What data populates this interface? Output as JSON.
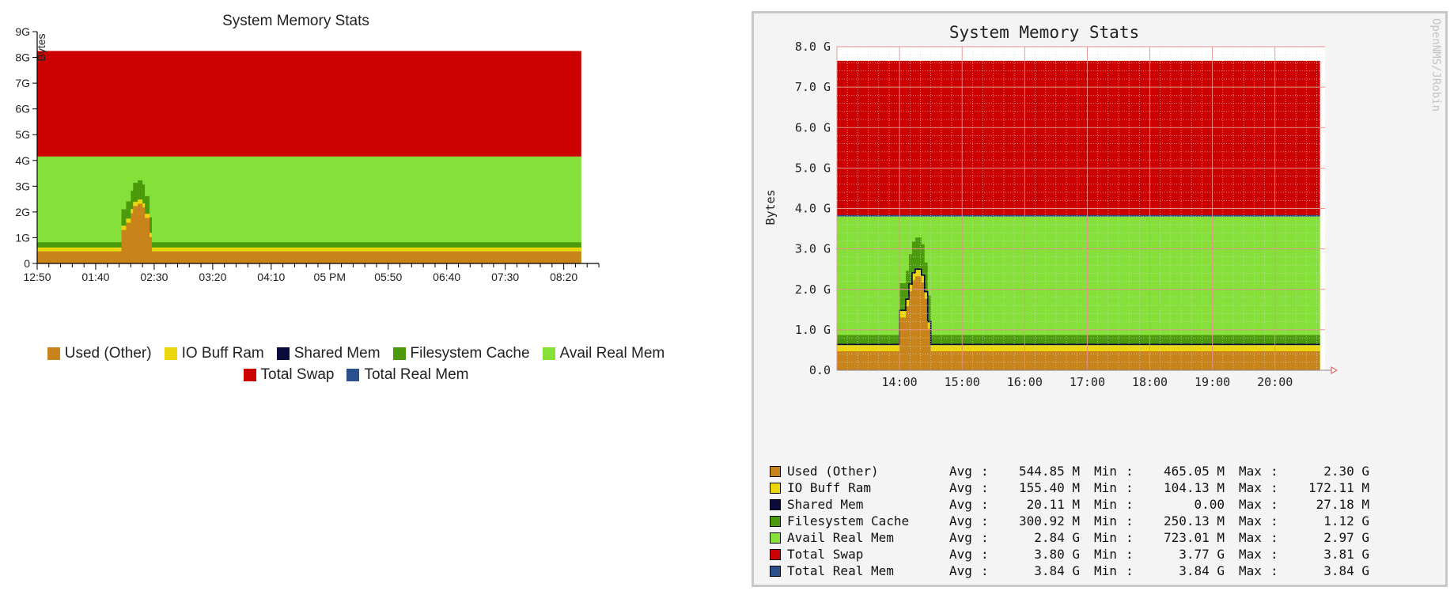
{
  "chart_data": [
    {
      "type": "area",
      "title": "System Memory Stats",
      "ylabel": "Bytes",
      "ylim": [
        0,
        9
      ],
      "yticks": [
        "0",
        "1G",
        "2G",
        "3G",
        "4G",
        "5G",
        "6G",
        "7G",
        "8G",
        "9G"
      ],
      "xlim": [
        0,
        480
      ],
      "xticks": [
        {
          "x": 0,
          "label": "12:50"
        },
        {
          "x": 50,
          "label": "01:40"
        },
        {
          "x": 100,
          "label": "02:30"
        },
        {
          "x": 150,
          "label": "03:20"
        },
        {
          "x": 200,
          "label": "04:10"
        },
        {
          "x": 250,
          "label": "05 PM"
        },
        {
          "x": 300,
          "label": "05:50"
        },
        {
          "x": 350,
          "label": "06:40"
        },
        {
          "x": 400,
          "label": "07:30"
        },
        {
          "x": 450,
          "label": "08:20"
        }
      ],
      "legend_position": "bottom",
      "legend_rows": [
        [
          "Used (Other)",
          "IO Buff Ram",
          "Shared Mem",
          "Filesystem Cache",
          "Avail Real Mem"
        ],
        [
          "Total Swap",
          "Total Real Mem"
        ]
      ],
      "colors": {
        "Used (Other)": "#c8831a",
        "IO Buff Ram": "#ecd60e",
        "Shared Mem": "#0a0a3c",
        "Filesystem Cache": "#4a9a0c",
        "Avail Real Mem": "#86e03a",
        "Total Swap": "#cc0000",
        "Total Real Mem": "#2a4f8c"
      }
    },
    {
      "type": "area",
      "title": "System Memory Stats",
      "ylabel": "Bytes",
      "ylim": [
        0,
        8
      ],
      "yticks": [
        "0.0",
        "1.0 G",
        "2.0 G",
        "3.0 G",
        "4.0 G",
        "5.0 G",
        "6.0 G",
        "7.0 G",
        "8.0 G"
      ],
      "xlim": [
        13.0,
        20.8
      ],
      "xticks": [
        {
          "x": 14,
          "label": "14:00"
        },
        {
          "x": 15,
          "label": "15:00"
        },
        {
          "x": 16,
          "label": "16:00"
        },
        {
          "x": 17,
          "label": "17:00"
        },
        {
          "x": 18,
          "label": "18:00"
        },
        {
          "x": 19,
          "label": "19:00"
        },
        {
          "x": 20,
          "label": "20:00"
        }
      ],
      "watermark": "OpenNMS/JRobin",
      "legend_position": "bottom",
      "series": [
        {
          "name": "Used (Other)",
          "color": "#c8831a",
          "avg": "544.85 M",
          "min": "465.05 M",
          "max": "2.30 G"
        },
        {
          "name": "IO Buff Ram",
          "color": "#ecd60e",
          "avg": "155.40 M",
          "min": "104.13 M",
          "max": "172.11 M"
        },
        {
          "name": "Shared Mem",
          "color": "#0a0a3c",
          "avg": "20.11 M",
          "min": "0.00",
          "max": "27.18 M"
        },
        {
          "name": "Filesystem Cache",
          "color": "#4a9a0c",
          "avg": "300.92 M",
          "min": "250.13 M",
          "max": "1.12 G"
        },
        {
          "name": "Avail Real Mem",
          "color": "#86e03a",
          "avg": "2.84 G",
          "min": "723.01 M",
          "max": "2.97 G"
        },
        {
          "name": "Total Swap",
          "color": "#cc0000",
          "avg": "3.80 G",
          "min": "3.77 G",
          "max": "3.81 G"
        },
        {
          "name": "Total Real Mem",
          "color": "#2a4f8c",
          "avg": "3.84 G",
          "min": "3.84 G",
          "max": "3.84 G"
        }
      ],
      "stat_labels": {
        "avg": "Avg",
        "min": "Min",
        "max": "Max",
        "sep": ":"
      }
    }
  ]
}
